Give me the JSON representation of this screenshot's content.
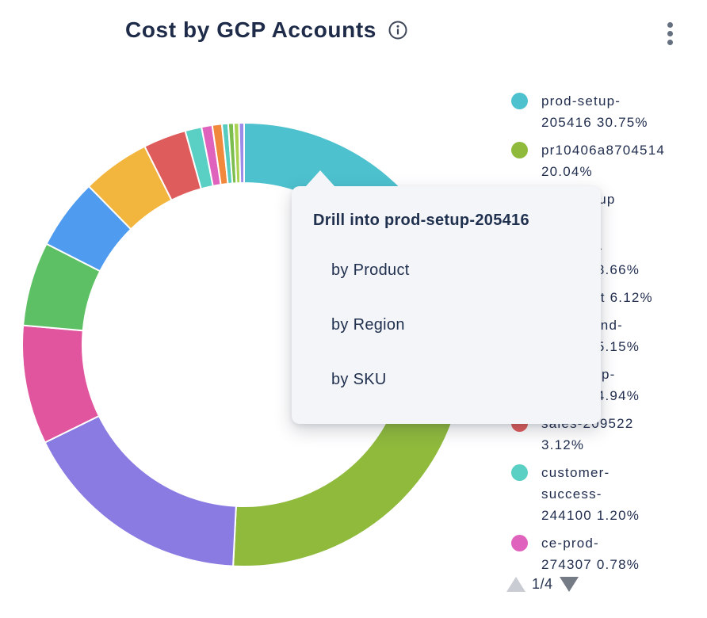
{
  "header": {
    "title": "Cost by GCP Accounts"
  },
  "tooltip": {
    "title": "Drill into prod-setup-205416",
    "options": [
      "by Product",
      "by Region",
      "by SKU"
    ]
  },
  "legend": {
    "page": "1/4",
    "items": [
      {
        "text": "prod-setup-\n205416 30.75%",
        "color": "#4DC1CE"
      },
      {
        "text": "pr10406a8704514\n20.04%",
        "color": "#8FBA3C"
      },
      {
        "text": "infra-setup\n16.94%",
        "color": "#8A7BE3"
      },
      {
        "text": "platform-\n245861 8.66%",
        "color": "#E0559D"
      },
      {
        "text": "ci-budget 6.12%",
        "color": "#5EC065"
      },
      {
        "text": "playground-\n218349 5.15%",
        "color": "#4E9BF0"
      },
      {
        "text": "test-setup-\n241203 4.94%",
        "color": "#F2B53D"
      },
      {
        "text": "sales-209522\n3.12%",
        "color": "#DE5C5B"
      },
      {
        "text": "customer-\nsuccess-\n244100 1.20%",
        "color": "#5ACFC3"
      },
      {
        "text": "ce-prod-\n274307 0.78%",
        "color": "#DF63BD"
      }
    ]
  },
  "chart_data": {
    "type": "pie",
    "subtype": "donut",
    "title": "Cost by GCP Accounts",
    "legend_position": "right",
    "start_angle_deg": 0,
    "direction": "clockwise",
    "series": [
      {
        "label": "prod-setup-205416",
        "value": 30.75,
        "color": "#4DC1CE"
      },
      {
        "label": "pr10406a8704514",
        "value": 20.04,
        "color": "#8FBA3C"
      },
      {
        "label": "infra-setup",
        "value": 16.94,
        "color": "#8A7BE3"
      },
      {
        "label": "platform-245861",
        "value": 8.66,
        "color": "#E0559D"
      },
      {
        "label": "ci-budget",
        "value": 6.12,
        "color": "#5EC065"
      },
      {
        "label": "playground-218349",
        "value": 5.15,
        "color": "#4E9BF0"
      },
      {
        "label": "test-setup-241203",
        "value": 4.94,
        "color": "#F2B53D"
      },
      {
        "label": "sales-209522",
        "value": 3.12,
        "color": "#DE5C5B"
      },
      {
        "label": "customer-success-244100",
        "value": 1.2,
        "color": "#5ACFC3"
      },
      {
        "label": "ce-prod-274307",
        "value": 0.78,
        "color": "#DF63BD"
      },
      {
        "label": "",
        "value": 0.7,
        "color": "#F0893C"
      },
      {
        "label": "",
        "value": 0.45,
        "color": "#56CCC0"
      },
      {
        "label": "",
        "value": 0.4,
        "color": "#7CBE4E"
      },
      {
        "label": "",
        "value": 0.38,
        "color": "#AAD252"
      },
      {
        "label": "",
        "value": 0.37,
        "color": "#9C8BE8"
      }
    ]
  }
}
